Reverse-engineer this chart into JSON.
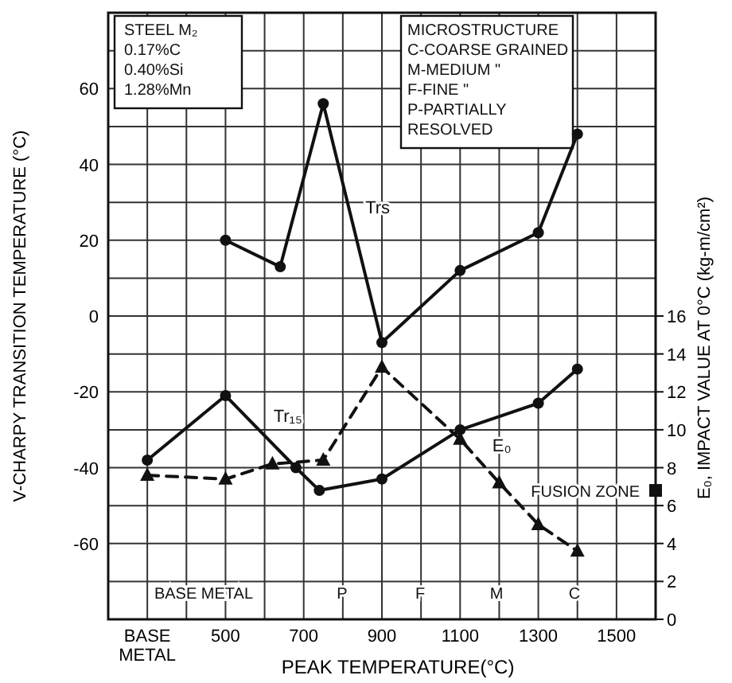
{
  "chart_data": {
    "type": "line",
    "xlabel": "PEAK TEMPERATURE(°C)",
    "ylabel": "V-CHARPY TRANSITION TEMPERATURE (°C)",
    "y2label": "E₀, IMPACT VALUE AT 0°C (kg-m/cm²)",
    "xlim": [
      200,
      1600
    ],
    "xticks": [
      {
        "value": 300,
        "label": "BASE METAL"
      },
      {
        "value": 400,
        "label": null
      },
      500,
      {
        "value": 600,
        "label": null
      },
      700,
      {
        "value": 800,
        "label": null
      },
      900,
      {
        "value": 1000,
        "label": null
      },
      1100,
      {
        "value": 1200,
        "label": null
      },
      1300,
      {
        "value": 1400,
        "label": null
      },
      1500
    ],
    "ylim": [
      -80,
      80
    ],
    "yticks": [
      {
        "value": -70,
        "label": null
      },
      -60,
      {
        "value": -50,
        "label": null
      },
      -40,
      {
        "value": -30,
        "label": null
      },
      -20,
      {
        "value": -10,
        "label": null
      },
      0,
      {
        "value": 10,
        "label": null
      },
      20,
      {
        "value": 30,
        "label": null
      },
      40,
      {
        "value": 50,
        "label": null
      },
      60,
      {
        "value": 70,
        "label": null
      }
    ],
    "y2lim": [
      0,
      32
    ],
    "y2ticks": [
      0,
      2,
      4,
      6,
      8,
      10,
      12,
      14,
      16
    ],
    "grid": true,
    "legend": false,
    "series": [
      {
        "name": "Trs",
        "color": "#111111",
        "marker": "circle",
        "line_style": "solid",
        "x": [
          500,
          640,
          750,
          900,
          1100,
          1300,
          1400
        ],
        "values": [
          20,
          13,
          56,
          -7,
          12,
          22,
          48
        ]
      },
      {
        "name": "Tr₁₅",
        "color": "#111111",
        "marker": "circle",
        "line_style": "solid",
        "x": [
          300,
          500,
          680,
          740,
          900,
          1100,
          1300,
          1400
        ],
        "values": [
          -38,
          -21,
          -40,
          -46,
          -43,
          -30,
          -23,
          -14
        ]
      },
      {
        "name": "E₀",
        "color": "#111111",
        "marker": "triangle",
        "line_style": "dashed",
        "axis": "y2",
        "x": [
          300,
          500,
          620,
          750,
          900,
          1100,
          1200,
          1300,
          1400
        ],
        "values": [
          7.6,
          7.4,
          8.2,
          8.4,
          13.3,
          9.5,
          7.2,
          5,
          3.6
        ]
      },
      {
        "type": "scatter",
        "color": "#111111",
        "marker": "square",
        "axis": "y2",
        "x": [
          1600
        ],
        "values": [
          6.8
        ]
      }
    ],
    "annotations": [
      "STEEL M₂\n0.17%C\n0.40%Si\n1.28%Mn",
      "MICROSTRUCTURE\nC-COARSE GRAINED\nM-MEDIUM \"\nF-FINE \"\nP-PARTIALLY\nRESOLVED",
      "BASE METAL",
      "P",
      "F",
      "M",
      "C",
      {
        "text": "FUSION ZONE",
        "x": 1600,
        "y": -46
      }
    ]
  }
}
